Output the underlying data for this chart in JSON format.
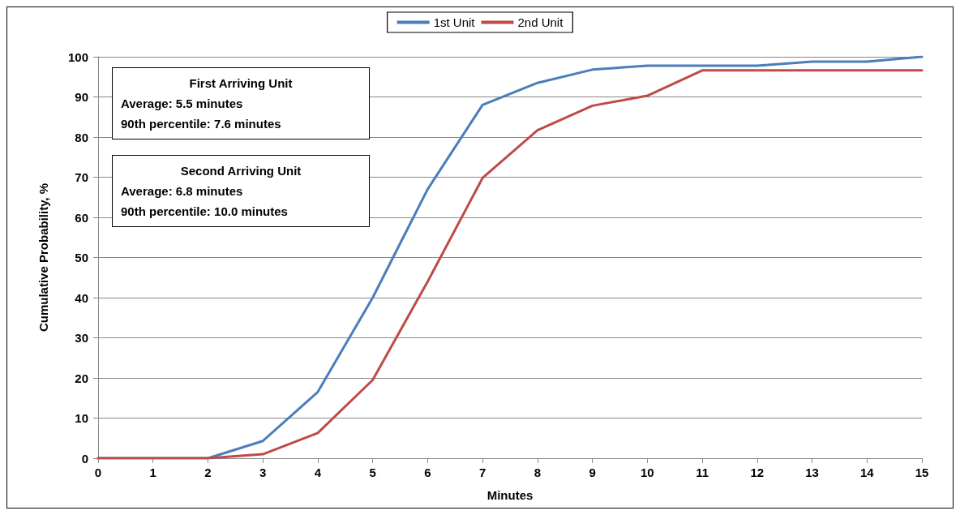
{
  "chart_data": {
    "type": "line",
    "xlabel": "Minutes",
    "ylabel": "Cumulative Probability, %",
    "x": [
      0,
      1,
      2,
      3,
      4,
      5,
      6,
      7,
      8,
      9,
      10,
      11,
      12,
      13,
      14,
      15
    ],
    "series": [
      {
        "name": "1st Unit",
        "color": "#4a7ebb",
        "values": [
          0,
          0,
          0,
          4.3,
          16.5,
          40,
          67,
          88,
          93.5,
          96.8,
          97.8,
          97.8,
          97.8,
          98.8,
          98.8,
          100
        ]
      },
      {
        "name": "2nd Unit",
        "color": "#be4b48",
        "values": [
          0,
          0,
          0,
          1,
          6.3,
          19.5,
          44,
          69.8,
          81.7,
          87.8,
          90.3,
          96.6,
          96.6,
          96.6,
          96.6,
          96.6
        ]
      }
    ],
    "xlim": [
      0,
      15
    ],
    "xticks": [
      0,
      1,
      2,
      3,
      4,
      5,
      6,
      7,
      8,
      9,
      10,
      11,
      12,
      13,
      14,
      15
    ],
    "ylim": [
      0,
      100
    ],
    "yticks": [
      0,
      10,
      20,
      30,
      40,
      50,
      60,
      70,
      80,
      90,
      100
    ],
    "grid": "y",
    "legend": "top",
    "marker": "none",
    "line_style": "solid",
    "annotations": [
      "First Arriving Unit\nAverage: 5.5 minutes\n90th percentile: 7.6 minutes",
      "Second Arriving Unit\nAverage: 6.8 minutes\n90th percentile: 10.0 minutes"
    ]
  }
}
